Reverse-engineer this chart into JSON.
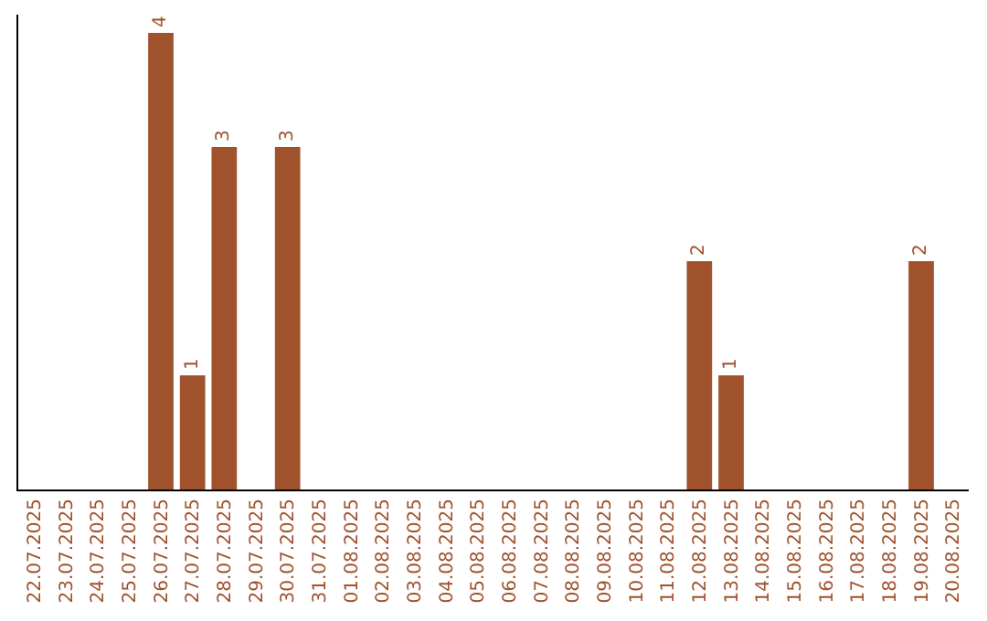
{
  "chart_data": {
    "type": "bar",
    "categories": [
      "22.07.2025",
      "23.07.2025",
      "24.07.2025",
      "25.07.2025",
      "26.07.2025",
      "27.07.2025",
      "28.07.2025",
      "29.07.2025",
      "30.07.2025",
      "31.07.2025",
      "01.08.2025",
      "02.08.2025",
      "03.08.2025",
      "04.08.2025",
      "05.08.2025",
      "06.08.2025",
      "07.08.2025",
      "08.08.2025",
      "09.08.2025",
      "10.08.2025",
      "11.08.2025",
      "12.08.2025",
      "13.08.2025",
      "14.08.2025",
      "15.08.2025",
      "16.08.2025",
      "17.08.2025",
      "18.08.2025",
      "19.08.2025",
      "20.08.2025"
    ],
    "values": [
      0,
      0,
      0,
      0,
      4,
      1,
      3,
      0,
      3,
      0,
      0,
      0,
      0,
      0,
      0,
      0,
      0,
      0,
      0,
      0,
      0,
      2,
      1,
      0,
      0,
      0,
      0,
      0,
      2,
      0
    ],
    "value_labels": [
      null,
      null,
      null,
      null,
      "4",
      "1",
      "3",
      null,
      "3",
      null,
      null,
      null,
      null,
      null,
      null,
      null,
      null,
      null,
      null,
      null,
      null,
      "2",
      "1",
      null,
      null,
      null,
      null,
      null,
      "2",
      null
    ],
    "color": "#a0522d",
    "grid": false,
    "legend": false
  }
}
